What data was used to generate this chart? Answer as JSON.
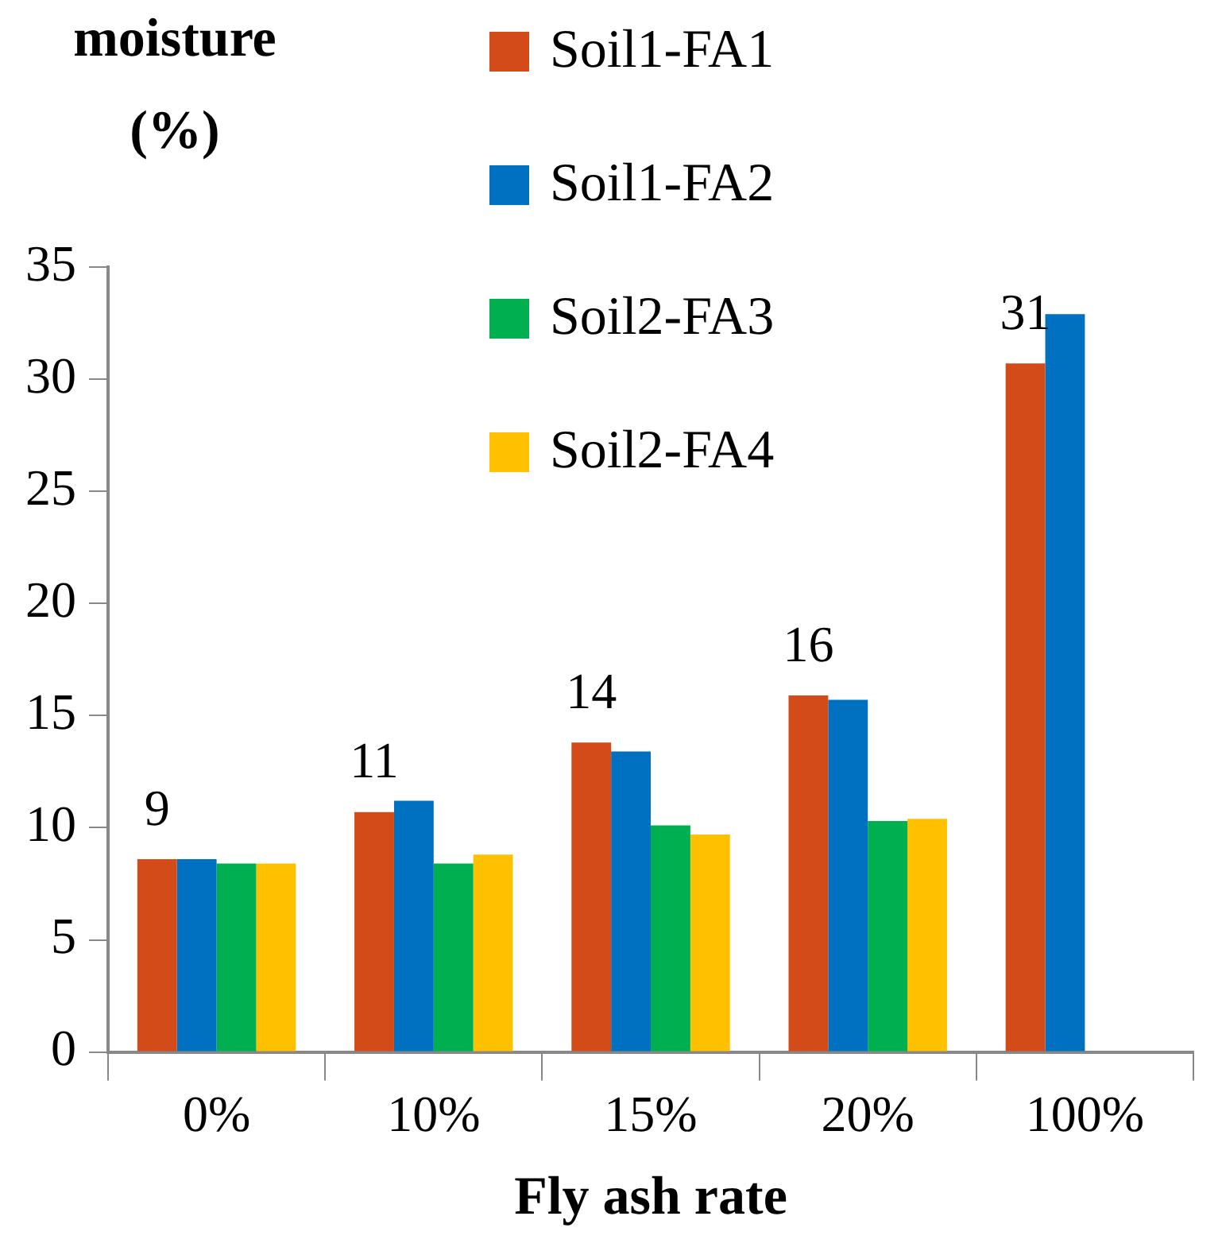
{
  "chart_data": {
    "type": "bar",
    "ylabel": "moisture (%)",
    "xlabel": "Fly ash rate",
    "categories": [
      "0%",
      "10%",
      "15%",
      "20%",
      "100%"
    ],
    "series": [
      {
        "name": "Soil1-FA1",
        "color": "#d24b19",
        "values": [
          8.6,
          10.7,
          13.8,
          15.9,
          30.7
        ],
        "value_labels": [
          "9",
          "11",
          "14",
          "16",
          "31"
        ]
      },
      {
        "name": "Soil1-FA2",
        "color": "#0070c0",
        "values": [
          8.6,
          11.2,
          13.4,
          15.7,
          32.9
        ]
      },
      {
        "name": "Soil2-FA3",
        "color": "#00b050",
        "values": [
          8.4,
          8.4,
          10.1,
          10.3,
          null
        ]
      },
      {
        "name": "Soil2-FA4",
        "color": "#ffc000",
        "values": [
          8.4,
          8.8,
          9.7,
          10.4,
          null
        ]
      }
    ],
    "ylim": [
      0,
      35
    ],
    "yticks": [
      0,
      5,
      10,
      15,
      20,
      25,
      30,
      35
    ],
    "grid": false,
    "legend": "top"
  }
}
